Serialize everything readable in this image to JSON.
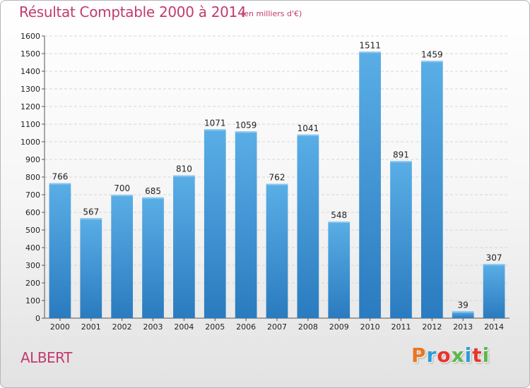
{
  "header": {
    "title": "Résultat Comptable 2000 à 2014",
    "subtitle": "(en milliers d'€)"
  },
  "footer": {
    "commune": "ALBERT",
    "brand": "Proxiti",
    "brand_colors": [
      "#e87722",
      "#2e9bd6",
      "#e7352c",
      "#5bb84c",
      "#2e9bd6",
      "#e7352c",
      "#5bb84c"
    ]
  },
  "chart_data": {
    "type": "bar",
    "title": "Résultat Comptable 2000 à 2014",
    "subtitle": "(en milliers d'€)",
    "xlabel": "",
    "ylabel": "",
    "categories": [
      "2000",
      "2001",
      "2002",
      "2003",
      "2004",
      "2005",
      "2006",
      "2007",
      "2008",
      "2009",
      "2010",
      "2011",
      "2012",
      "2013",
      "2014"
    ],
    "values": [
      766,
      567,
      700,
      685,
      810,
      1071,
      1059,
      762,
      1041,
      548,
      1511,
      891,
      1459,
      39,
      307
    ],
    "ylim": [
      0,
      1600
    ],
    "yticks": [
      0,
      100,
      200,
      300,
      400,
      500,
      600,
      700,
      800,
      900,
      1000,
      1100,
      1200,
      1300,
      1400,
      1500,
      1600
    ],
    "grid": true,
    "bar_color_top": "#5aaee6",
    "bar_color_bottom": "#2a7bbf"
  }
}
